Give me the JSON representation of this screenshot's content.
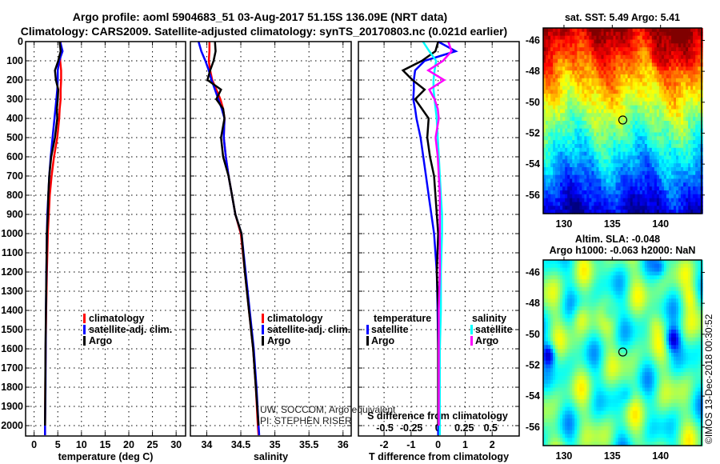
{
  "header": {
    "title_line1": "Argo profile: aoml 5904683_51 03-Aug-2017 51.15S 136.09E (NRT data)",
    "title_line2": "Climatology: CARS2009. Satellite-adjusted climatology: synTS_20170803.nc (0.021d earlier)"
  },
  "credits": {
    "line1": "UW, SOCCOM, Argo equivalent",
    "line2": "PI: STEPHEN RISER",
    "copyright": "©IMOS 13-Dec-2018 00:30:52"
  },
  "colors": {
    "climatology": "#ff0000",
    "satellite": "#0000ff",
    "argo": "#000000",
    "sal_satellite": "#00ffff",
    "sal_argo": "#ff00ff"
  },
  "chart_data": [
    {
      "type": "line",
      "id": "temperature",
      "xlabel": "temperature (deg C)",
      "ylabel": "",
      "xlim": [
        -1.8,
        32
      ],
      "ylim": [
        2054,
        0
      ],
      "xticks": [
        "0",
        "5",
        "10",
        "15",
        "20",
        "25",
        "30"
      ],
      "xtick_values": [
        0,
        5,
        10,
        15,
        20,
        25,
        30
      ],
      "yticks": [
        "0",
        "100",
        "200",
        "300",
        "400",
        "500",
        "600",
        "700",
        "800",
        "900",
        "1000",
        "1100",
        "1200",
        "1300",
        "1400",
        "1500",
        "1600",
        "1700",
        "1800",
        "1900",
        "2000"
      ],
      "grid": true,
      "legend": {
        "placement": "center-right",
        "items": [
          "climatology",
          "satellite-adj. clim.",
          "Argo"
        ]
      },
      "pressure": [
        0,
        50,
        100,
        150,
        200,
        250,
        300,
        350,
        400,
        500,
        600,
        700,
        800,
        900,
        1000,
        1200,
        1400,
        1600,
        1800,
        2000,
        2050
      ],
      "series": [
        {
          "name": "climatology",
          "color": "#ff0000",
          "values": [
            5.6,
            5.6,
            5.5,
            5.7,
            5.7,
            5.6,
            5.6,
            5.4,
            5.3,
            4.9,
            4.2,
            3.7,
            3.3,
            3.1,
            2.9,
            2.7,
            2.55,
            2.45,
            2.35,
            2.3,
            2.3
          ]
        },
        {
          "name": "satellite-adj. clim.",
          "color": "#0000ff",
          "values": [
            5.5,
            6.0,
            5.3,
            5.0,
            5.0,
            4.9,
            4.7,
            4.5,
            4.3,
            3.9,
            3.5,
            3.2,
            3.0,
            2.8,
            2.7,
            2.6,
            2.5,
            2.45,
            2.4,
            2.3,
            2.3
          ]
        },
        {
          "name": "Argo",
          "color": "#000000",
          "values": [
            5.4,
            5.6,
            5.1,
            4.4,
            4.6,
            5.1,
            5.0,
            4.8,
            4.9,
            4.4,
            3.6,
            3.2,
            3.0,
            2.9,
            2.7,
            2.6,
            2.5,
            2.4,
            2.35,
            2.3,
            null
          ]
        }
      ]
    },
    {
      "type": "line",
      "id": "salinity",
      "xlabel": "salinity",
      "xlim": [
        33.76,
        36.12
      ],
      "ylim": [
        2054,
        0
      ],
      "xticks": [
        "34",
        "34.5",
        "35",
        "35.5",
        "36"
      ],
      "xtick_values": [
        34,
        34.5,
        35,
        35.5,
        36
      ],
      "grid": true,
      "legend": {
        "placement": "center-right",
        "items": [
          "climatology",
          "satellite-adj. clim.",
          "Argo"
        ]
      },
      "pressure": [
        0,
        50,
        100,
        150,
        200,
        250,
        300,
        350,
        400,
        500,
        600,
        700,
        800,
        900,
        1000,
        1200,
        1400,
        1600,
        1800,
        2000,
        2050
      ],
      "series": [
        {
          "name": "climatology",
          "color": "#ff0000",
          "values": [
            34.04,
            34.04,
            34.03,
            34.05,
            34.08,
            34.14,
            34.2,
            34.24,
            34.26,
            34.25,
            34.28,
            34.32,
            34.37,
            34.42,
            34.5,
            34.56,
            34.62,
            34.68,
            34.72,
            34.75,
            34.76
          ]
        },
        {
          "name": "satellite-adj. clim.",
          "color": "#0000ff",
          "values": [
            33.88,
            33.92,
            33.98,
            34.03,
            34.07,
            34.12,
            34.17,
            34.22,
            34.26,
            34.25,
            34.28,
            34.32,
            34.37,
            34.42,
            34.51,
            34.57,
            34.63,
            34.69,
            34.73,
            34.76,
            34.77
          ]
        },
        {
          "name": "Argo",
          "color": "#000000",
          "values": [
            34.12,
            34.13,
            34.1,
            34.05,
            34.01,
            34.21,
            34.14,
            34.24,
            34.26,
            34.21,
            34.24,
            34.32,
            34.37,
            34.42,
            34.51,
            34.56,
            34.62,
            34.68,
            34.72,
            34.76,
            null
          ]
        }
      ]
    },
    {
      "type": "line",
      "id": "difference",
      "xlabel": "T difference from climatology",
      "x2label": "S difference from climatology",
      "xlim": [
        -2.95,
        3.0
      ],
      "x2lim": [
        -0.75,
        0.77
      ],
      "ylim": [
        2054,
        0
      ],
      "xticks": [
        "-2",
        "-1",
        "0",
        "1",
        "2"
      ],
      "xtick_values": [
        -2,
        -1,
        0,
        1,
        2
      ],
      "x2ticks": [
        "-0.5",
        "-0.25",
        "0",
        "0.25",
        "0.5"
      ],
      "x2tick_values": [
        -0.5,
        -0.25,
        0,
        0.25,
        0.5
      ],
      "grid": true,
      "legend": {
        "placement": "bottom",
        "temperature_header": "temperature",
        "salinity_header": "salinity",
        "items": [
          "satellite",
          "Argo"
        ]
      },
      "pressure": [
        0,
        50,
        100,
        150,
        200,
        250,
        300,
        350,
        400,
        500,
        600,
        700,
        800,
        900,
        1000,
        1200,
        1400,
        1600,
        1800,
        2000,
        2050
      ],
      "series": [
        {
          "name": "temperature satellite",
          "axis": "T",
          "color": "#0000ff",
          "values": [
            0,
            0.65,
            -0.5,
            -0.85,
            -0.9,
            -0.9,
            -0.92,
            -0.85,
            -0.8,
            -0.65,
            -0.55,
            -0.45,
            -0.35,
            -0.25,
            -0.15,
            -0.05,
            -0.02,
            0,
            0,
            0,
            0
          ]
        },
        {
          "name": "temperature Argo",
          "axis": "T",
          "color": "#000000",
          "values": [
            0,
            -0.1,
            -0.6,
            -1.3,
            -0.95,
            -0.5,
            -0.85,
            -0.6,
            -0.35,
            -0.4,
            -0.3,
            -0.15,
            -0.1,
            -0.05,
            0,
            -0.05,
            0,
            0,
            0,
            0,
            null
          ]
        },
        {
          "name": "salinity satellite",
          "axis": "S",
          "color": "#00ffff",
          "values": [
            -0.14,
            -0.08,
            -0.015,
            -0.03,
            -0.04,
            -0.04,
            -0.03,
            -0.02,
            -0.01,
            0,
            0.01,
            0.02,
            0.03,
            0.04,
            0.04,
            0.03,
            0.03,
            0.02,
            0.02,
            0.02,
            0.02
          ]
        },
        {
          "name": "salinity Argo",
          "axis": "S",
          "color": "#ff00ff",
          "values": [
            0.1,
            0.13,
            0.05,
            -0.09,
            0.06,
            -0.08,
            -0.03,
            0,
            0.01,
            -0.02,
            0,
            0.01,
            0.02,
            0.02,
            0.02,
            0.02,
            0.01,
            0.01,
            0.01,
            0.01,
            null
          ]
        }
      ]
    },
    {
      "type": "heatmap",
      "id": "sst_map",
      "title": "sat. SST: 5.49 Argo: 5.41",
      "xlim": [
        127.85,
        144.25
      ],
      "ylim": [
        -57.2,
        -45.2
      ],
      "xticks": [
        "130",
        "135",
        "140"
      ],
      "xtick_values": [
        130,
        135,
        140
      ],
      "yticks": [
        "-46",
        "-48",
        "-50",
        "-52",
        "-54",
        "-56"
      ],
      "ytick_values": [
        -46,
        -48,
        -50,
        -52,
        -54,
        -56
      ],
      "marker": {
        "lon": 136.09,
        "lat": -51.15
      }
    },
    {
      "type": "heatmap",
      "id": "sla_map",
      "title_line1": "Altim. SLA: -0.048",
      "title_line2": "Argo h1000: -0.063 h2000: NaN",
      "xlim": [
        127.85,
        144.25
      ],
      "ylim": [
        -57.2,
        -45.2
      ],
      "xticks": [
        "130",
        "135",
        "140"
      ],
      "xtick_values": [
        130,
        135,
        140
      ],
      "yticks": [
        "-46",
        "-48",
        "-50",
        "-52",
        "-54",
        "-56"
      ],
      "ytick_values": [
        -46,
        -48,
        -50,
        -52,
        -54,
        -56
      ],
      "marker": {
        "lon": 136.09,
        "lat": -51.15
      }
    }
  ]
}
